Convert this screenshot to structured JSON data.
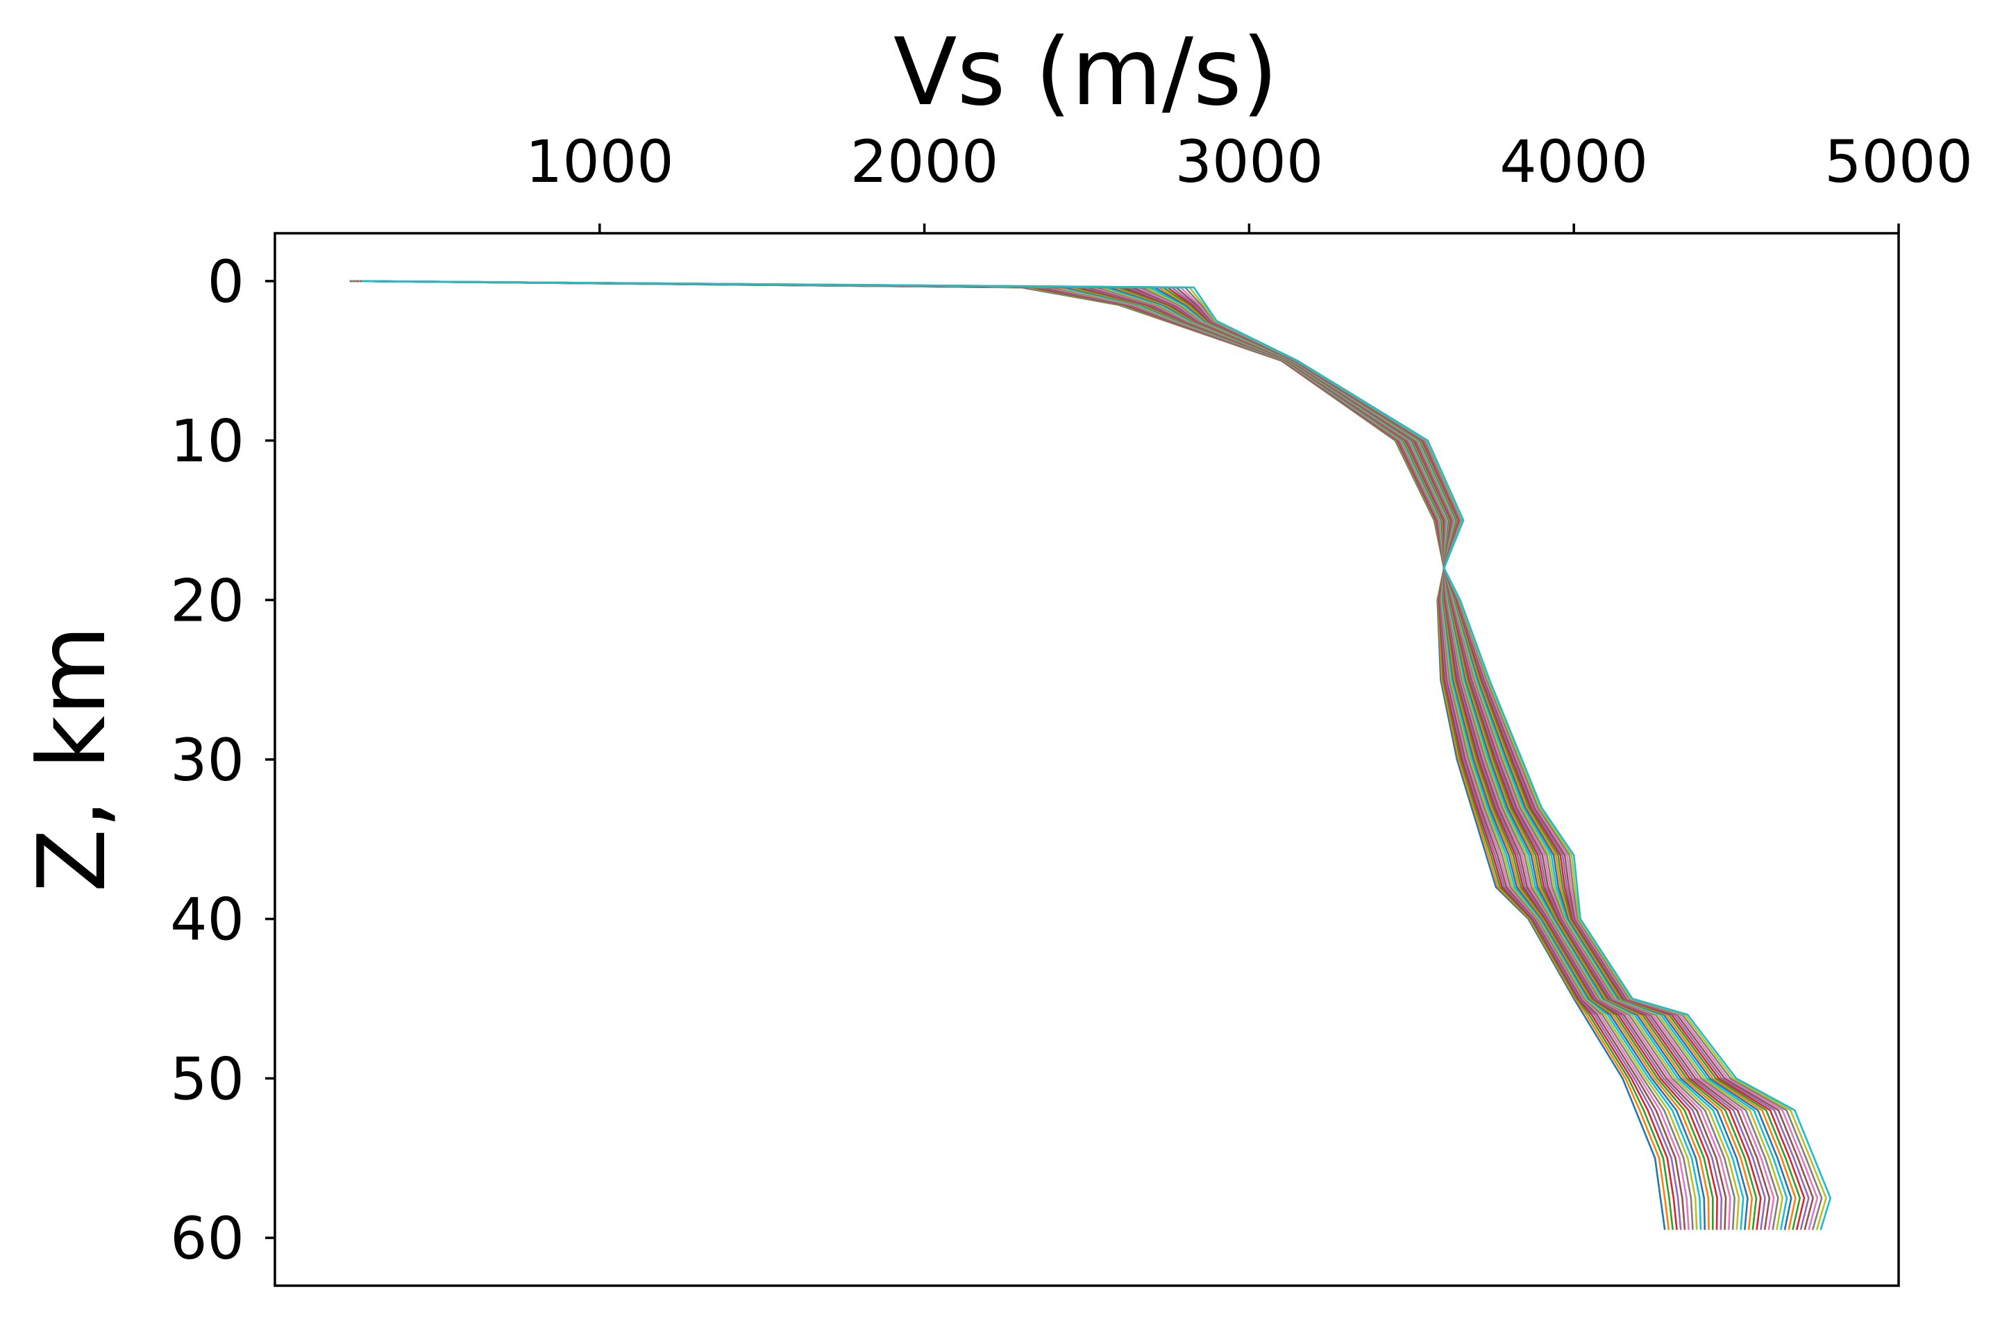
{
  "chart_data": {
    "type": "line",
    "title": "",
    "xlabel": "Vs (m/s)",
    "ylabel": "Z, km",
    "xlim": [
      0,
      5000
    ],
    "ylim": [
      63,
      -3
    ],
    "y_inverted": true,
    "x_axis_position": "top",
    "grid": false,
    "legend": "none",
    "x_ticks": [
      1000,
      2000,
      3000,
      4000,
      5000
    ],
    "y_ticks": [
      0,
      10,
      20,
      30,
      40,
      50,
      60
    ],
    "x_tick_labels": [
      "1000",
      "2000",
      "3000",
      "4000",
      "5000"
    ],
    "y_tick_labels": [
      "0",
      "10",
      "20",
      "30",
      "40",
      "50",
      "60"
    ],
    "profile_count": 40,
    "colors": [
      "#1f77b4",
      "#ff7f0e",
      "#2ca02c",
      "#d62728",
      "#9467bd",
      "#8c564b",
      "#e377c2",
      "#7f7f7f",
      "#bcbd22",
      "#17becf"
    ],
    "representative_profiles": {
      "leftmost": {
        "depth_km": [
          0,
          0.4,
          1.5,
          5,
          10,
          15,
          18,
          20,
          25,
          30,
          34,
          38,
          40,
          45,
          50,
          55,
          59.5
        ],
        "vs_ms": [
          230,
          2300,
          2600,
          3100,
          3450,
          3570,
          3600,
          3580,
          3590,
          3640,
          3700,
          3760,
          3860,
          4000,
          4150,
          4250,
          4280
        ]
      },
      "rightmost": {
        "depth_km": [
          0,
          0.4,
          2.5,
          5,
          10,
          15,
          18,
          20,
          25,
          30,
          33,
          36,
          40,
          45,
          46,
          50,
          52,
          55,
          57.5,
          59.5
        ],
        "vs_ms": [
          270,
          2830,
          2900,
          3150,
          3550,
          3660,
          3600,
          3650,
          3740,
          3840,
          3900,
          4000,
          4020,
          4180,
          4350,
          4500,
          4680,
          4740,
          4790,
          4760
        ]
      }
    }
  }
}
